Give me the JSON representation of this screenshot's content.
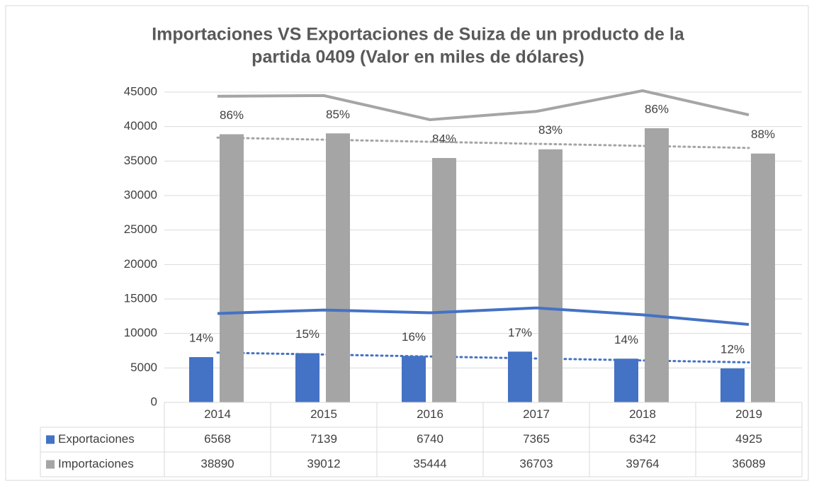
{
  "chart_data": {
    "type": "bar",
    "title": [
      "Importaciones VS Exportaciones de Suiza de un producto de la",
      "partida 0409 (Valor en miles de dólares)"
    ],
    "categories": [
      "2014",
      "2015",
      "2016",
      "2017",
      "2018",
      "2019"
    ],
    "series": [
      {
        "name": "Exportaciones",
        "color": "#4472c4",
        "values": [
          6568,
          7139,
          6740,
          7365,
          6342,
          4925
        ],
        "point_labels": [
          "14%",
          "15%",
          "16%",
          "17%",
          "14%",
          "12%"
        ]
      },
      {
        "name": "Importaciones",
        "color": "#a5a5a5",
        "values": [
          38890,
          39012,
          35444,
          36703,
          39764,
          36089
        ],
        "point_labels": [
          "86%",
          "85%",
          "84%",
          "83%",
          "86%",
          "88%"
        ]
      }
    ],
    "lines": [
      {
        "color": "#4472c4",
        "values": [
          12900,
          13400,
          13000,
          13700,
          12700,
          11300
        ]
      },
      {
        "color": "#a5a5a5",
        "values": [
          44400,
          44500,
          41000,
          42200,
          45200,
          41700
        ]
      }
    ],
    "trendline": true,
    "ylim": [
      0,
      45000
    ],
    "yticks": [
      0,
      5000,
      10000,
      15000,
      20000,
      25000,
      30000,
      35000,
      40000,
      45000
    ],
    "grid": true
  }
}
